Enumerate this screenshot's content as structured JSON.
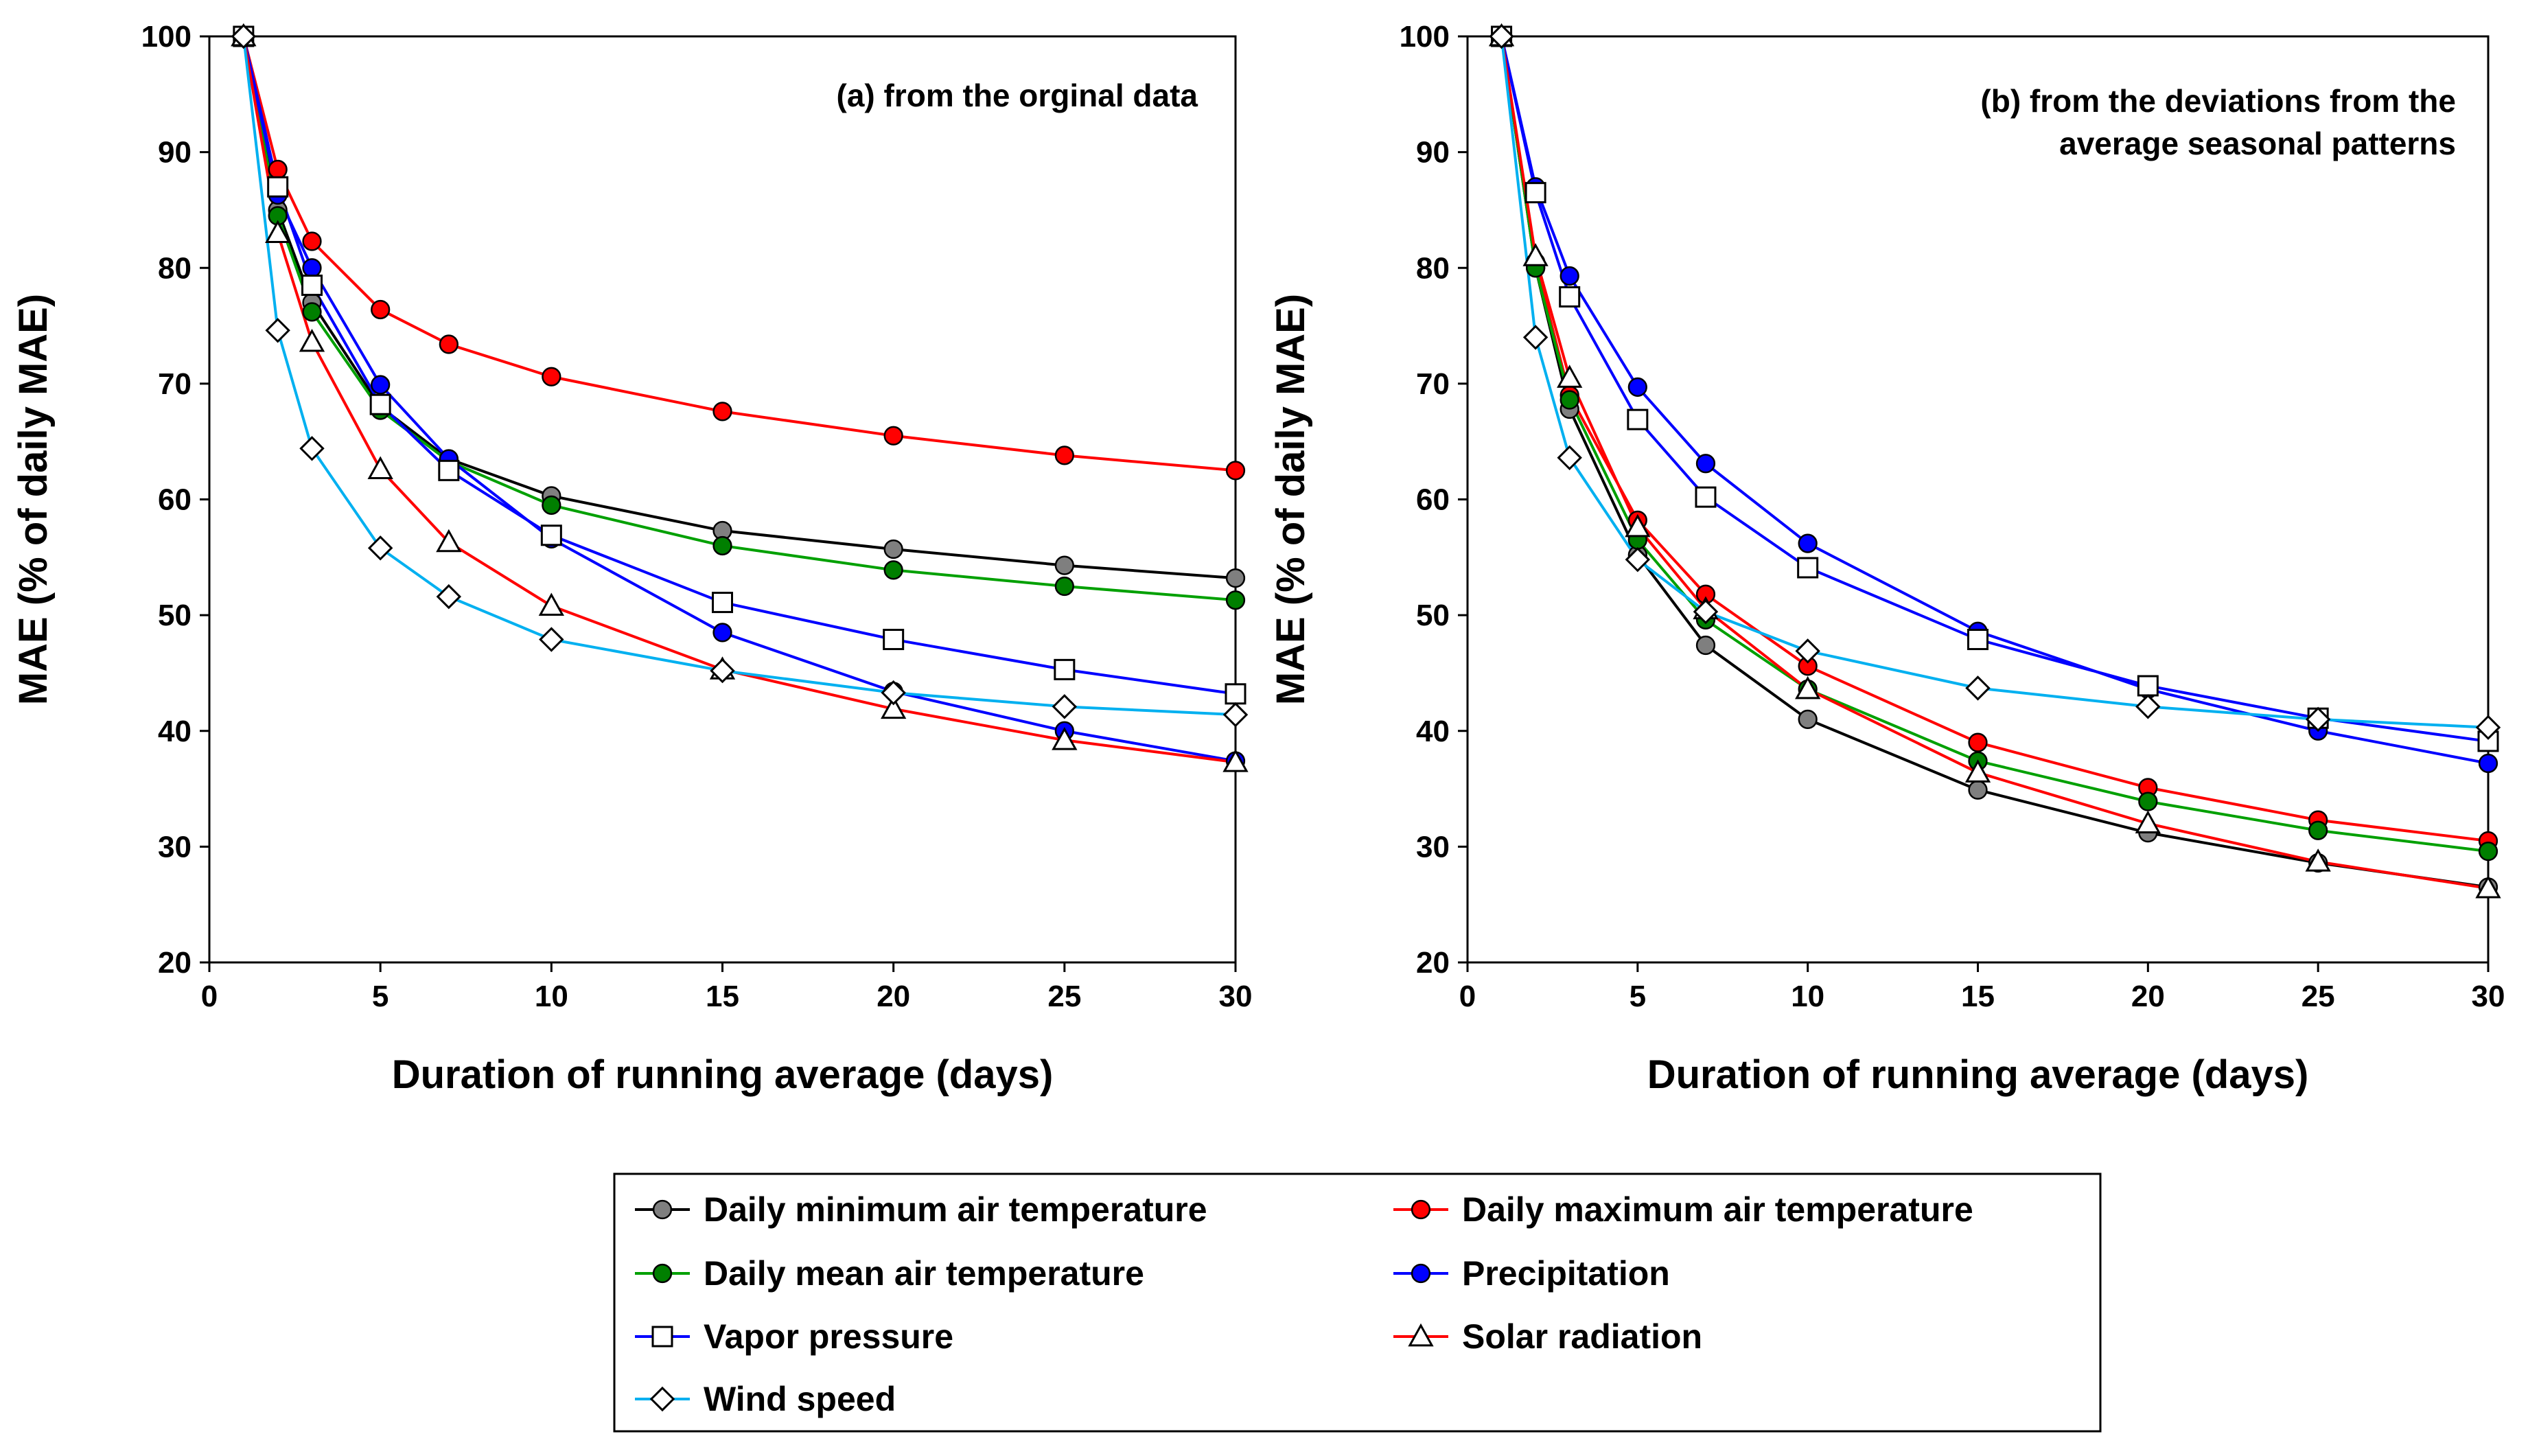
{
  "chart_data": [
    {
      "type": "line",
      "annotation": "(a) from the orginal data",
      "xlabel": "Duration of running average (days)",
      "ylabel": "MAE (% of daily MAE)",
      "xlim": [
        0,
        30
      ],
      "ylim": [
        20,
        100
      ],
      "xticks": [
        0,
        5,
        10,
        15,
        20,
        25,
        30
      ],
      "yticks": [
        20,
        30,
        40,
        50,
        60,
        70,
        80,
        90,
        100
      ],
      "x": [
        1,
        2,
        3,
        5,
        7,
        10,
        15,
        20,
        25,
        30
      ],
      "series": [
        {
          "name": "Daily minimum air temperature",
          "values": [
            100,
            85,
            77,
            68,
            63.5,
            60.3,
            57.3,
            55.7,
            54.3,
            53.2
          ]
        },
        {
          "name": "Daily maximum air temperature",
          "values": [
            100,
            88.5,
            82.3,
            76.4,
            73.4,
            70.6,
            67.6,
            65.5,
            63.8,
            62.5
          ]
        },
        {
          "name": "Daily mean air temperature",
          "values": [
            100,
            84.5,
            76.2,
            67.7,
            63.3,
            59.5,
            56,
            53.9,
            52.5,
            51.3
          ]
        },
        {
          "name": "Precipitation",
          "values": [
            100,
            86.3,
            80,
            69.9,
            63.5,
            56.6,
            48.5,
            43.4,
            40,
            37.4
          ]
        },
        {
          "name": "Vapor pressure",
          "values": [
            100,
            87,
            78.5,
            68.2,
            62.5,
            56.9,
            51.1,
            47.9,
            45.3,
            43.2
          ]
        },
        {
          "name": "Solar radiation",
          "values": [
            100,
            83,
            73.6,
            62.6,
            56.3,
            50.8,
            45.3,
            41.9,
            39.2,
            37.3
          ]
        },
        {
          "name": "Wind speed",
          "values": [
            100,
            74.6,
            64.4,
            55.8,
            51.6,
            47.9,
            45.2,
            43.3,
            42.1,
            41.4
          ]
        }
      ]
    },
    {
      "type": "line",
      "annotation_lines": [
        "(b) from the deviations from the",
        "average seasonal patterns"
      ],
      "xlabel": "Duration of running average (days)",
      "ylabel": "MAE (% of daily MAE)",
      "xlim": [
        0,
        30
      ],
      "ylim": [
        20,
        100
      ],
      "xticks": [
        0,
        5,
        10,
        15,
        20,
        25,
        30
      ],
      "yticks": [
        20,
        30,
        40,
        50,
        60,
        70,
        80,
        90,
        100
      ],
      "x": [
        1,
        2,
        3,
        5,
        7,
        10,
        15,
        20,
        25,
        30
      ],
      "series": [
        {
          "name": "Daily minimum air temperature",
          "values": [
            100,
            80,
            67.8,
            55.2,
            47.4,
            41,
            34.9,
            31.2,
            28.6,
            26.5
          ]
        },
        {
          "name": "Daily maximum air temperature",
          "values": [
            100,
            80.5,
            69,
            58.2,
            51.8,
            45.6,
            39,
            35.1,
            32.3,
            30.5
          ]
        },
        {
          "name": "Daily mean air temperature",
          "values": [
            100,
            80,
            68.6,
            56.5,
            49.6,
            43.6,
            37.4,
            33.9,
            31.4,
            29.6
          ]
        },
        {
          "name": "Precipitation",
          "values": [
            100,
            87,
            79.3,
            69.7,
            63.1,
            56.2,
            48.6,
            43.6,
            40,
            37.2
          ]
        },
        {
          "name": "Vapor pressure",
          "values": [
            100,
            86.5,
            77.5,
            66.9,
            60.2,
            54.1,
            47.9,
            43.9,
            41.1,
            39.1
          ]
        },
        {
          "name": "Solar radiation",
          "values": [
            100,
            81,
            70.5,
            57.6,
            50.5,
            43.6,
            36.4,
            32,
            28.7,
            26.4
          ]
        },
        {
          "name": "Wind speed",
          "values": [
            100,
            74,
            63.6,
            54.8,
            50.3,
            46.9,
            43.7,
            42.1,
            41,
            40.3
          ]
        }
      ]
    }
  ],
  "legend": [
    {
      "label": "Daily minimum air temperature",
      "color": "#000000",
      "marker": "circle",
      "fill": "#7f7f7f"
    },
    {
      "label": "Daily maximum air temperature",
      "color": "#ff0000",
      "marker": "circle",
      "fill": "#ff0000"
    },
    {
      "label": "Daily mean air temperature",
      "color": "#00a000",
      "marker": "circle",
      "fill": "#007f00"
    },
    {
      "label": "Precipitation",
      "color": "#0000ff",
      "marker": "circle",
      "fill": "#0000ff"
    },
    {
      "label": "Vapor pressure",
      "color": "#0000ff",
      "marker": "square",
      "fill": "#ffffff"
    },
    {
      "label": "Solar radiation",
      "color": "#ff0000",
      "marker": "triangle",
      "fill": "#ffffff"
    },
    {
      "label": "Wind speed",
      "color": "#00b0f0",
      "marker": "diamond",
      "fill": "#ffffff"
    }
  ]
}
